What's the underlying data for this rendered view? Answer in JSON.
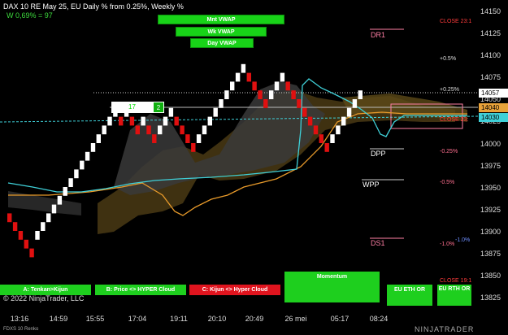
{
  "header": {
    "title": "DAX 10  RE May 25, EU Daily % from 0.25%, Weekly %",
    "subtitle": "W 0,69% = 97"
  },
  "vwap_buttons": {
    "monthly": "Mnt VWAP",
    "weekly": "Wk VWAP",
    "daily": "Day VWAP"
  },
  "counter": {
    "value": "17",
    "badge": "2"
  },
  "y_axis": {
    "labels": [
      "14150",
      "14125",
      "14100",
      "14075",
      "14050",
      "14025",
      "14000",
      "13975",
      "13950",
      "13925",
      "13900",
      "13875",
      "13850",
      "13825"
    ]
  },
  "price_boxes": {
    "last": "14057",
    "level_1": "14040",
    "level_2": "14030",
    "hidden": "14050"
  },
  "x_axis": {
    "labels": [
      "13:16",
      "14:59",
      "15:55",
      "17:04",
      "19:11",
      "20:10",
      "20:49",
      "26 mei",
      "05:17",
      "08:24"
    ]
  },
  "pivots": {
    "dr1": "DR1",
    "dpp": "DPP",
    "wpp": "WPP",
    "ds1": "DS1"
  },
  "percent_levels": {
    "p05": "+0.5%",
    "p025": "+0.25%",
    "m025": "-0.25%",
    "m05": "-0.5%",
    "m10": "-1.0%",
    "m10b": "-1.0%"
  },
  "close_labels": {
    "close_231": "CLOSE 23:1",
    "close_mid": "CLOSE 23:",
    "close_191": "CLOSE 19:1"
  },
  "bottom_buttons": {
    "tenkan": "A: Tenkan>Kijun",
    "price_hyper": "B: Price <> HYPER Cloud",
    "kijun_hyper": "C: Kijun <> Hyper Cloud",
    "momentum": "Momentum",
    "eu_eth": "EU ETH OR",
    "eu_rth": "EU RTH OR"
  },
  "footer": {
    "copyright": "© 2022 NinjaTrader, LLC",
    "symbol": "FDXS 10 Renko",
    "brand": "NINJATRADER"
  },
  "colors": {
    "green_button": "#1ecf1e",
    "red_button": "#e0141e",
    "cloud_brown": "#5a4518",
    "cloud_gray": "#3a3a3a",
    "tenkan_cyan": "#3fd0d8",
    "kijun_orange": "#e89a2a",
    "bull_brick": "#ffffff",
    "bear_brick": "#e01010"
  },
  "chart_data": {
    "type": "renko",
    "brick_size": 10,
    "ylim": [
      13815,
      14160
    ],
    "bricks": [
      {
        "dir": "down",
        "close": 13910
      },
      {
        "dir": "down",
        "close": 13900
      },
      {
        "dir": "down",
        "close": 13890
      },
      {
        "dir": "down",
        "close": 13880
      },
      {
        "dir": "down",
        "close": 13870
      },
      {
        "dir": "up",
        "close": 13900
      },
      {
        "dir": "up",
        "close": 13910
      },
      {
        "dir": "up",
        "close": 13920
      },
      {
        "dir": "up",
        "close": 13930
      },
      {
        "dir": "up",
        "close": 13940
      },
      {
        "dir": "up",
        "close": 13950
      },
      {
        "dir": "up",
        "close": 13960
      },
      {
        "dir": "up",
        "close": 13970
      },
      {
        "dir": "up",
        "close": 13980
      },
      {
        "dir": "up",
        "close": 13990
      },
      {
        "dir": "up",
        "close": 14000
      },
      {
        "dir": "up",
        "close": 14010
      },
      {
        "dir": "up",
        "close": 14020
      },
      {
        "dir": "up",
        "close": 14030
      },
      {
        "dir": "up",
        "close": 14040
      },
      {
        "dir": "down",
        "close": 14020
      },
      {
        "dir": "up",
        "close": 14040
      },
      {
        "dir": "down",
        "close": 14020
      },
      {
        "dir": "down",
        "close": 14010
      },
      {
        "dir": "up",
        "close": 14030
      },
      {
        "dir": "down",
        "close": 14010
      },
      {
        "dir": "down",
        "close": 14000
      },
      {
        "dir": "up",
        "close": 14020
      },
      {
        "dir": "up",
        "close": 14030
      },
      {
        "dir": "up",
        "close": 14040
      },
      {
        "dir": "down",
        "close": 14020
      },
      {
        "dir": "down",
        "close": 14010
      },
      {
        "dir": "down",
        "close": 14000
      },
      {
        "dir": "down",
        "close": 13990
      },
      {
        "dir": "up",
        "close": 14010
      },
      {
        "dir": "up",
        "close": 14020
      },
      {
        "dir": "up",
        "close": 14030
      },
      {
        "dir": "up",
        "close": 14040
      },
      {
        "dir": "up",
        "close": 14050
      },
      {
        "dir": "up",
        "close": 14060
      },
      {
        "dir": "up",
        "close": 14070
      },
      {
        "dir": "up",
        "close": 14080
      },
      {
        "dir": "up",
        "close": 14090
      },
      {
        "dir": "down",
        "close": 14070
      },
      {
        "dir": "down",
        "close": 14060
      },
      {
        "dir": "down",
        "close": 14050
      },
      {
        "dir": "down",
        "close": 14040
      },
      {
        "dir": "up",
        "close": 14060
      },
      {
        "dir": "up",
        "close": 14070
      },
      {
        "dir": "up",
        "close": 14080
      },
      {
        "dir": "down",
        "close": 14060
      },
      {
        "dir": "down",
        "close": 14050
      },
      {
        "dir": "down",
        "close": 14040
      },
      {
        "dir": "down",
        "close": 14030
      },
      {
        "dir": "down",
        "close": 14020
      },
      {
        "dir": "down",
        "close": 14010
      },
      {
        "dir": "down",
        "close": 14000
      },
      {
        "dir": "down",
        "close": 13990
      },
      {
        "dir": "up",
        "close": 14010
      },
      {
        "dir": "up",
        "close": 14020
      },
      {
        "dir": "up",
        "close": 14030
      },
      {
        "dir": "up",
        "close": 14040
      },
      {
        "dir": "up",
        "close": 14050
      },
      {
        "dir": "up",
        "close": 14060
      }
    ]
  }
}
